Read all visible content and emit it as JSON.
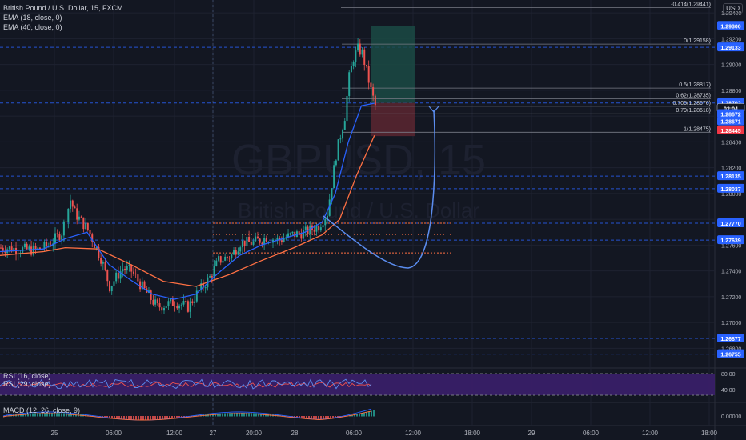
{
  "header": {
    "symbol": "British Pound / U.S. Dollar, 15, FXCM",
    "indicators": [
      "EMA (18, close, 0)",
      "EMA (40, close, 0)"
    ],
    "currency": "USD"
  },
  "watermark": {
    "ticker": "GBPUSD, 15",
    "name": "British Pound / U.S. Dollar"
  },
  "price_axis": {
    "ticks": [
      "1.29400",
      "1.29200",
      "1.29000",
      "1.28800",
      "1.28600",
      "1.28400",
      "1.28200",
      "1.28000",
      "1.27800",
      "1.27600",
      "1.27400",
      "1.27200",
      "1.27000",
      "1.26800"
    ]
  },
  "price_tags": [
    {
      "text": "1.29300",
      "color": "#2962ff",
      "price": 1.293
    },
    {
      "text": "1.29133",
      "color": "#2962ff",
      "price": 1.29133
    },
    {
      "text": "1.28702",
      "color": "#2962ff",
      "price": 1.28702
    },
    {
      "text": "02:04",
      "color": "#131722",
      "price": 1.2866
    },
    {
      "text": "1.28672",
      "color": "#2962ff",
      "price": 1.28616
    },
    {
      "text": "1.28671",
      "color": "#2962ff",
      "price": 1.2856
    },
    {
      "text": "1.28445",
      "color": "#f23645",
      "price": 1.2849
    },
    {
      "text": "1.28135",
      "color": "#2962ff",
      "price": 1.28135
    },
    {
      "text": "1.28037",
      "color": "#2962ff",
      "price": 1.28037
    },
    {
      "text": "1.27770",
      "color": "#2962ff",
      "price": 1.2777
    },
    {
      "text": "1.27639",
      "color": "#2962ff",
      "price": 1.27639
    },
    {
      "text": "1.26877",
      "color": "#2962ff",
      "price": 1.26877
    },
    {
      "text": "1.26755",
      "color": "#2962ff",
      "price": 1.26755
    }
  ],
  "fib_levels": [
    {
      "label": "-0.414(1.29441)",
      "price": 1.29441
    },
    {
      "label": "0(1.29158)",
      "price": 1.29158
    },
    {
      "label": "0.5(1.28817)",
      "price": 1.28817
    },
    {
      "label": "0.62(1.28735)",
      "price": 1.28735
    },
    {
      "label": "0.705(1.28676)",
      "price": 1.28676
    },
    {
      "label": "0.79(1.28618)",
      "price": 1.28618
    },
    {
      "label": "1(1.28475)",
      "price": 1.28475
    }
  ],
  "horizontal_levels": [
    1.29133,
    1.28702,
    1.28135,
    1.28037,
    1.2777,
    1.27639,
    1.26877,
    1.26755
  ],
  "time_axis": {
    "ticks": [
      "25",
      "06:00",
      "12:00",
      "27",
      "20:00",
      "28",
      "06:00",
      "12:00",
      "18:00",
      "29",
      "06:00",
      "12:00",
      "18:00"
    ]
  },
  "rsi_panel": {
    "labels": [
      "RSI (16, close)",
      "RSI (29, close)"
    ],
    "ticks": [
      "80.00",
      "40.00"
    ]
  },
  "macd_panel": {
    "label": "MACD (12, 26, close, 9)",
    "ticks": [
      "0.00000"
    ]
  },
  "colors": {
    "background": "#131722",
    "grid": "#1e2230",
    "up": "#26a69a",
    "down": "#ef5350",
    "ema18": "#2962ff",
    "ema40": "#ff7043",
    "fib": "#787b86",
    "level": "#2962ff",
    "rsi_band": "#3b1f6b",
    "projection": "#5b8def"
  },
  "chart_data": {
    "type": "candlestick",
    "title": "British Pound / U.S. Dollar, 15, FXCM",
    "ylim": [
      1.2666,
      1.295
    ],
    "x_categories": [
      "25",
      "06:00",
      "12:00",
      "27",
      "20:00",
      "28",
      "06:00",
      "12:00",
      "18:00",
      "29",
      "06:00",
      "12:00",
      "18:00"
    ],
    "price_path": [
      [
        0,
        1.2758
      ],
      [
        8,
        1.2757
      ],
      [
        16,
        1.2756
      ],
      [
        22,
        1.276
      ],
      [
        28,
        1.277
      ],
      [
        32,
        1.2795
      ],
      [
        34,
        1.2785
      ],
      [
        40,
        1.2772
      ],
      [
        46,
        1.275
      ],
      [
        50,
        1.2728
      ],
      [
        56,
        1.2742
      ],
      [
        60,
        1.274
      ],
      [
        66,
        1.2725
      ],
      [
        72,
        1.2712
      ],
      [
        80,
        1.2716
      ],
      [
        86,
        1.2712
      ],
      [
        90,
        1.2722
      ],
      [
        96,
        1.2735
      ],
      [
        100,
        1.2748
      ],
      [
        106,
        1.2752
      ],
      [
        110,
        1.2762
      ],
      [
        116,
        1.2762
      ],
      [
        122,
        1.2766
      ],
      [
        128,
        1.2764
      ],
      [
        134,
        1.2768
      ],
      [
        140,
        1.277
      ],
      [
        146,
        1.2775
      ],
      [
        150,
        1.2785
      ],
      [
        154,
        1.283
      ],
      [
        158,
        1.286
      ],
      [
        160,
        1.289
      ],
      [
        162,
        1.2905
      ],
      [
        164,
        1.2912
      ],
      [
        166,
        1.2909
      ],
      [
        168,
        1.2895
      ],
      [
        170,
        1.288
      ],
      [
        172,
        1.2868
      ]
    ],
    "ema18_path": [
      [
        0,
        1.2755
      ],
      [
        20,
        1.2757
      ],
      [
        30,
        1.2765
      ],
      [
        40,
        1.277
      ],
      [
        50,
        1.2745
      ],
      [
        60,
        1.2733
      ],
      [
        70,
        1.2722
      ],
      [
        80,
        1.2718
      ],
      [
        90,
        1.2722
      ],
      [
        100,
        1.2738
      ],
      [
        110,
        1.2752
      ],
      [
        120,
        1.276
      ],
      [
        130,
        1.2765
      ],
      [
        140,
        1.277
      ],
      [
        148,
        1.2778
      ],
      [
        154,
        1.28
      ],
      [
        160,
        1.284
      ],
      [
        166,
        1.2868
      ],
      [
        172,
        1.287
      ]
    ],
    "ema40_path": [
      [
        0,
        1.2752
      ],
      [
        20,
        1.2755
      ],
      [
        30,
        1.2758
      ],
      [
        45,
        1.2757
      ],
      [
        60,
        1.2745
      ],
      [
        75,
        1.2732
      ],
      [
        90,
        1.2728
      ],
      [
        105,
        1.2737
      ],
      [
        120,
        1.2748
      ],
      [
        135,
        1.2758
      ],
      [
        148,
        1.2768
      ],
      [
        156,
        1.278
      ],
      [
        164,
        1.2815
      ],
      [
        172,
        1.2845
      ]
    ],
    "trade_box": {
      "entry": 1.28702,
      "target": 1.293,
      "stop": 1.28445
    }
  }
}
